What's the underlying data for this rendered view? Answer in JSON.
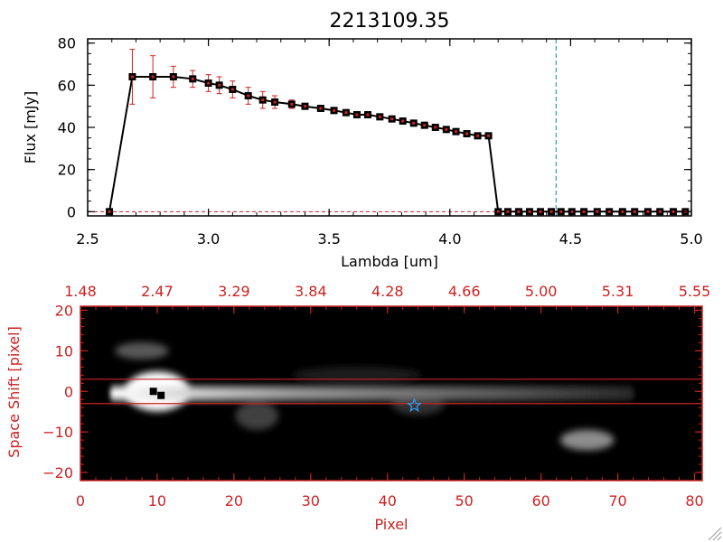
{
  "chart_data": [
    {
      "type": "line",
      "title": "2213109.35",
      "xlabel": "Lambda [um]",
      "ylabel": "Flux [mJy]",
      "xlim": [
        2.5,
        5.0
      ],
      "ylim": [
        -2,
        82
      ],
      "x_ticks": [
        2.5,
        3.0,
        3.5,
        4.0,
        4.5,
        5.0
      ],
      "x_tick_labels": [
        "2.5",
        "3.0",
        "3.5",
        "4.0",
        "4.5",
        "5.0"
      ],
      "y_ticks": [
        0,
        20,
        40,
        60,
        80
      ],
      "y_tick_labels": [
        "0",
        "20",
        "40",
        "60",
        "80"
      ],
      "line_color": "#000000",
      "marker_color": "#000000",
      "errorbar_color": "#cc2222",
      "vline": {
        "x": 4.44,
        "color": "#3399cc",
        "style": "dashed"
      },
      "zero_line_color": "#cc2222",
      "series": [
        {
          "x": [
            2.59,
            2.685,
            2.77,
            2.855,
            2.935,
            3.0,
            3.045,
            3.1,
            3.165,
            3.225,
            3.275,
            3.345,
            3.4,
            3.465,
            3.52,
            3.57,
            3.615,
            3.66,
            3.71,
            3.76,
            3.805,
            3.85,
            3.895,
            3.94,
            3.985,
            4.025,
            4.07,
            4.115,
            4.16,
            4.2,
            4.24,
            4.285,
            4.33,
            4.375,
            4.42,
            4.46,
            4.505,
            4.555,
            4.61,
            4.66,
            4.715,
            4.765,
            4.82,
            4.87,
            4.925,
            4.975
          ],
          "y": [
            0,
            64,
            64,
            64,
            63,
            61,
            60,
            58,
            55,
            53,
            52,
            51,
            50,
            49,
            48,
            47,
            46,
            46,
            45,
            44,
            43,
            42,
            41,
            40,
            39,
            38,
            37,
            36,
            36,
            0,
            0,
            0,
            0,
            0,
            0,
            0,
            0,
            0,
            0,
            0,
            0,
            0,
            0,
            0,
            0,
            0
          ],
          "yerr": [
            0,
            13,
            10,
            5,
            4,
            4,
            4,
            4,
            4,
            4,
            3,
            2,
            0,
            0,
            0,
            0,
            0,
            0,
            0,
            0,
            0,
            0,
            0,
            0,
            0,
            0,
            0,
            0,
            0,
            0,
            0,
            0,
            0,
            0,
            0,
            0,
            0,
            0,
            0,
            0,
            0,
            0,
            0,
            0,
            0,
            0
          ]
        }
      ]
    },
    {
      "type": "heatmap",
      "xlabel": "Pixel",
      "ylabel": "Space Shift [pixel]",
      "xlim": [
        0,
        81
      ],
      "ylim": [
        -22,
        21
      ],
      "x_ticks": [
        0,
        10,
        20,
        30,
        40,
        50,
        60,
        70,
        80
      ],
      "x_tick_labels": [
        "0",
        "10",
        "20",
        "30",
        "40",
        "50",
        "60",
        "70",
        "80"
      ],
      "y_ticks": [
        -20,
        -10,
        0,
        10,
        20
      ],
      "y_tick_labels": [
        "−20",
        "−10",
        "0",
        "10",
        "20"
      ],
      "top_axis_labels": [
        "1.48",
        "2.47",
        "3.29",
        "3.84",
        "4.28",
        "4.66",
        "5.00",
        "5.31",
        "5.55"
      ],
      "axis_color": "#cc2222",
      "aperture_lines_y": [
        3,
        -3
      ],
      "aperture_line_color": "#cc2222",
      "trace": {
        "x_start": 4,
        "x_end": 72,
        "y": -0.5,
        "color_bright": "#ffffff",
        "color_dim": "#3a3a3a"
      },
      "source_blobs": [
        {
          "x": 10,
          "y": 0,
          "sx": 3,
          "sy": 3.5,
          "intensity": 1.0
        },
        {
          "x": 8,
          "y": 10,
          "sx": 2.5,
          "sy": 1.5,
          "intensity": 0.35
        },
        {
          "x": 23,
          "y": -6,
          "sx": 2.0,
          "sy": 2.5,
          "intensity": 0.25
        },
        {
          "x": 66,
          "y": -12,
          "sx": 2.5,
          "sy": 1.8,
          "intensity": 0.55
        },
        {
          "x": 44,
          "y": -3,
          "sx": 2.5,
          "sy": 2.0,
          "intensity": 0.2
        },
        {
          "x": 36,
          "y": 4,
          "sx": 6.0,
          "sy": 1.5,
          "intensity": 0.12
        }
      ],
      "black_markers": [
        {
          "x": 9.5,
          "y": 0
        },
        {
          "x": 10.5,
          "y": -1
        }
      ],
      "star_marker": {
        "x": 43.5,
        "y": -3.5,
        "color": "#3399ee"
      }
    }
  ]
}
